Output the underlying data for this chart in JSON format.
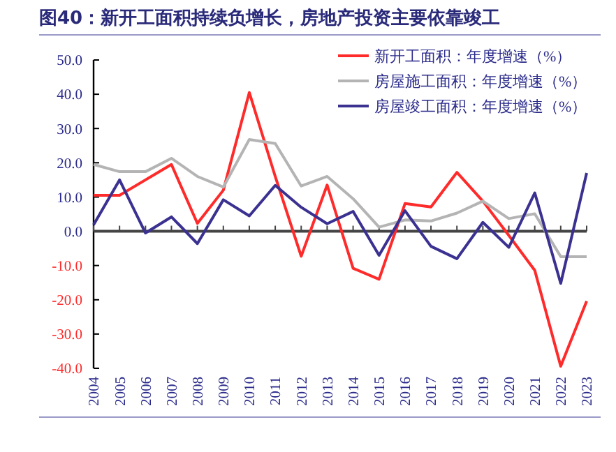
{
  "chart_data": {
    "type": "line",
    "title": "图40：新开工面积持续负增长，房地产投资主要依靠竣工",
    "categories": [
      "2004",
      "2005",
      "2006",
      "2007",
      "2008",
      "2009",
      "2010",
      "2011",
      "2012",
      "2013",
      "2014",
      "2015",
      "2016",
      "2017",
      "2018",
      "2019",
      "2020",
      "2021",
      "2022",
      "2023"
    ],
    "series": [
      {
        "name": "新开工面积：年度增速（%）",
        "color": "#ff2a2a",
        "values": [
          10.5,
          10.5,
          15,
          19.5,
          2.3,
          12,
          40.5,
          16,
          -7.3,
          13.5,
          -10.8,
          -14,
          8.1,
          7.1,
          17.2,
          8.8,
          -1.2,
          -11.4,
          -39.4,
          -20.4
        ]
      },
      {
        "name": "房屋施工面积：年度增速（%）",
        "color": "#b4b4b4",
        "values": [
          19.5,
          17.4,
          17.4,
          21.3,
          16,
          12.9,
          26.8,
          25.6,
          13.2,
          16,
          9.5,
          1.2,
          3.3,
          3,
          5.3,
          8.8,
          3.7,
          5.1,
          -7.4,
          -7.4
        ]
      },
      {
        "name": "房屋竣工面积：年度增速（%）",
        "color": "#3a3191",
        "values": [
          1.9,
          15,
          -0.5,
          4.2,
          -3.6,
          9.2,
          4.5,
          13.4,
          7,
          2.2,
          5.8,
          -7,
          6,
          -4.4,
          -8,
          2.6,
          -4.7,
          11.2,
          -15.2,
          17
        ]
      }
    ],
    "ylim": [
      -40,
      50
    ],
    "yticks": [
      {
        "value": -40,
        "label": "-40.0"
      },
      {
        "value": -30,
        "label": "-30.0"
      },
      {
        "value": -20,
        "label": "-20.0"
      },
      {
        "value": -10,
        "label": "-10.0"
      },
      {
        "value": 0,
        "label": "0.0"
      },
      {
        "value": 10,
        "label": "10.0"
      },
      {
        "value": 20,
        "label": "20.0"
      },
      {
        "value": 30,
        "label": "30.0"
      },
      {
        "value": 40,
        "label": "40.0"
      },
      {
        "value": 50,
        "label": "50.0"
      }
    ],
    "ref_lines": [
      {
        "axis": "y",
        "value": 0,
        "color": "#444444"
      }
    ],
    "grid": false,
    "legend": "top right",
    "marker": "none",
    "line_style": "solid"
  }
}
